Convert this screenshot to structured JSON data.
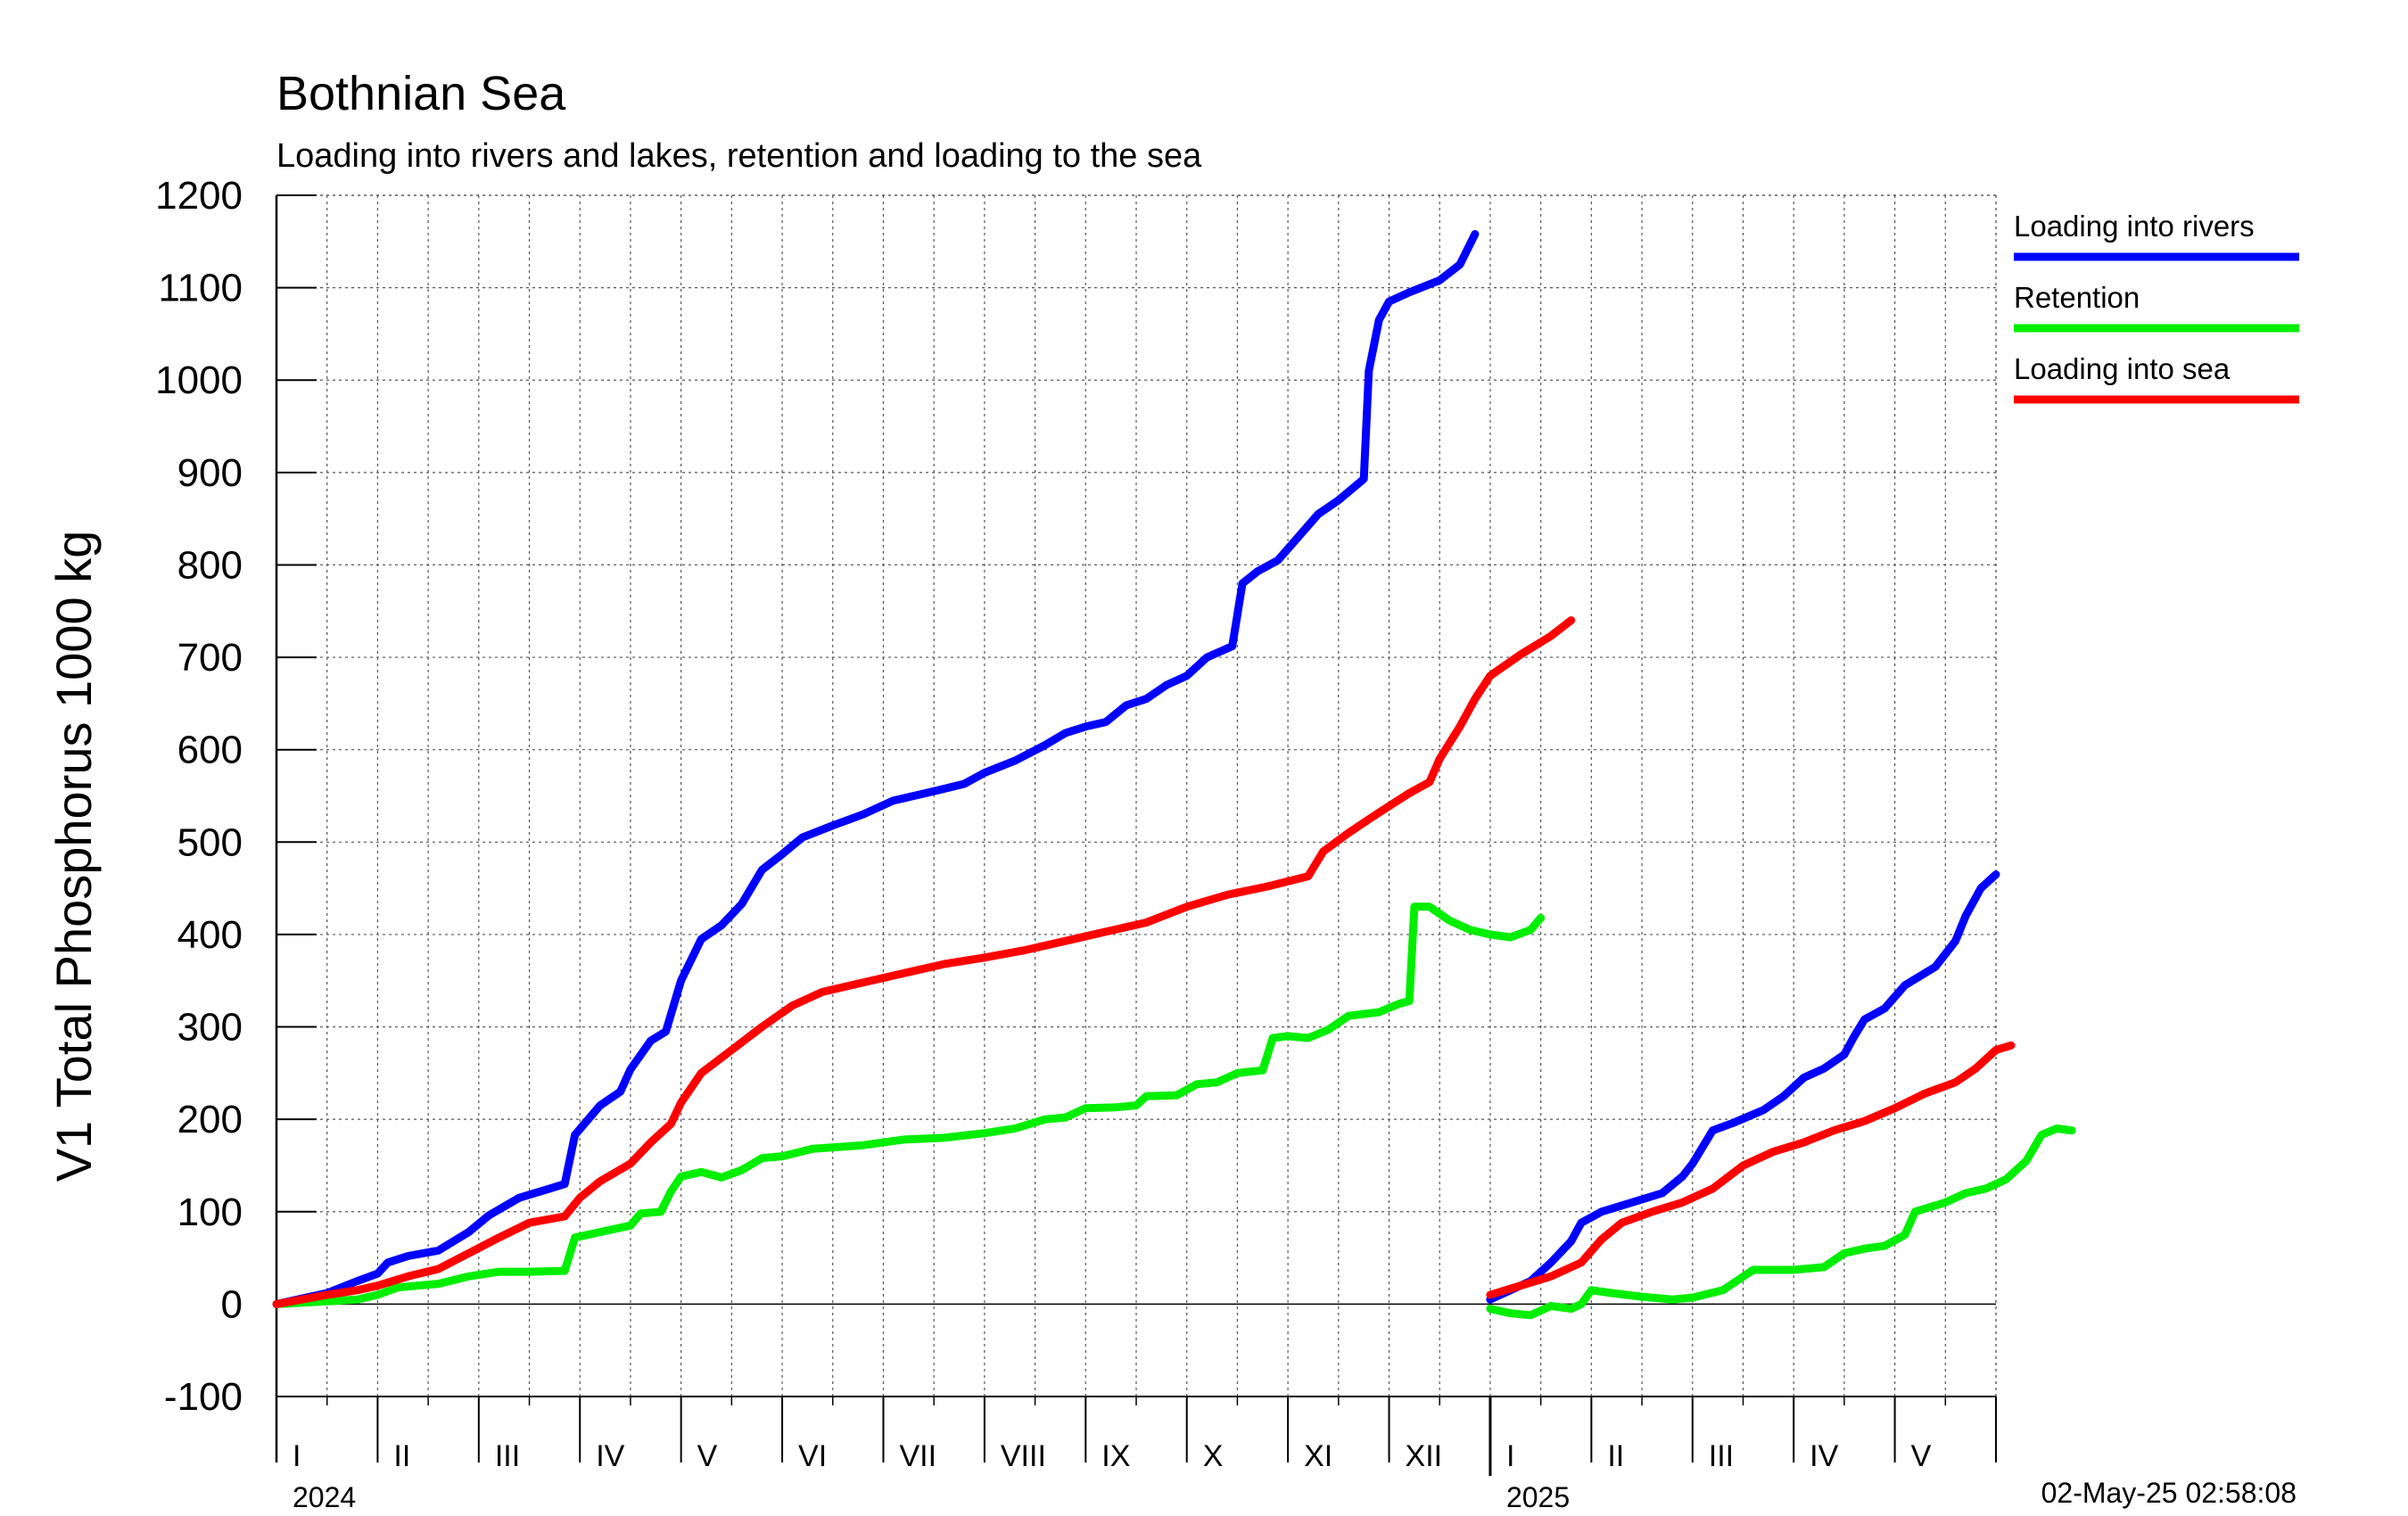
{
  "chart_data": {
    "type": "line",
    "title": "Bothnian Sea",
    "subtitle": "Loading into rivers and lakes, retention and loading to the sea",
    "ylabel": "V1 Total Phosphorus 1000 kg",
    "xlabel": "",
    "ylim": [
      -100,
      1200
    ],
    "yticks": [
      -100,
      0,
      100,
      200,
      300,
      400,
      500,
      600,
      700,
      800,
      900,
      1000,
      1100,
      1200
    ],
    "grid": true,
    "legend_position": "right",
    "timestamp": "02-May-25 02:58:08",
    "x_axis": {
      "unit": "month",
      "range": [
        0,
        17
      ],
      "months": [
        "I",
        "II",
        "III",
        "IV",
        "V",
        "VI",
        "VII",
        "VIII",
        "IX",
        "X",
        "XI",
        "XII",
        "I",
        "II",
        "III",
        "IV",
        "V"
      ],
      "years": [
        {
          "label": "2024",
          "at": 0
        },
        {
          "label": "2025",
          "at": 12
        }
      ],
      "year_boundary": 12
    },
    "series": [
      {
        "name": "Loading into rivers",
        "color": "#0000ff",
        "segments": [
          [
            [
              0,
              0
            ],
            [
              0.5,
              12
            ],
            [
              0.8,
              25
            ],
            [
              1.0,
              33
            ],
            [
              1.1,
              45
            ],
            [
              1.3,
              52
            ],
            [
              1.6,
              58
            ],
            [
              1.9,
              78
            ],
            [
              2.1,
              96
            ],
            [
              2.4,
              115
            ],
            [
              2.7,
              125
            ],
            [
              2.85,
              130
            ],
            [
              2.95,
              183
            ],
            [
              3.2,
              215
            ],
            [
              3.4,
              230
            ],
            [
              3.5,
              254
            ],
            [
              3.7,
              285
            ],
            [
              3.85,
              295
            ],
            [
              4.0,
              350
            ],
            [
              4.2,
              395
            ],
            [
              4.4,
              410
            ],
            [
              4.6,
              433
            ],
            [
              4.8,
              470
            ],
            [
              5.0,
              487
            ],
            [
              5.2,
              505
            ],
            [
              5.5,
              518
            ],
            [
              5.8,
              530
            ],
            [
              6.1,
              545
            ],
            [
              6.5,
              555
            ],
            [
              6.8,
              563
            ],
            [
              7.0,
              575
            ],
            [
              7.3,
              588
            ],
            [
              7.6,
              605
            ],
            [
              7.8,
              618
            ],
            [
              8.0,
              625
            ],
            [
              8.2,
              630
            ],
            [
              8.4,
              648
            ],
            [
              8.6,
              655
            ],
            [
              8.8,
              670
            ],
            [
              9.0,
              680
            ],
            [
              9.2,
              700
            ],
            [
              9.45,
              712
            ],
            [
              9.55,
              780
            ],
            [
              9.7,
              793
            ],
            [
              9.9,
              805
            ],
            [
              10.1,
              830
            ],
            [
              10.3,
              855
            ],
            [
              10.5,
              870
            ],
            [
              10.75,
              893
            ],
            [
              10.8,
              1010
            ],
            [
              10.9,
              1065
            ],
            [
              11.0,
              1085
            ],
            [
              11.2,
              1095
            ],
            [
              11.5,
              1108
            ],
            [
              11.7,
              1125
            ],
            [
              11.85,
              1158
            ]
          ],
          [
            [
              12,
              5
            ],
            [
              12.2,
              15
            ],
            [
              12.4,
              25
            ],
            [
              12.6,
              45
            ],
            [
              12.8,
              68
            ],
            [
              12.9,
              88
            ],
            [
              13.1,
              100
            ],
            [
              13.4,
              110
            ],
            [
              13.7,
              120
            ],
            [
              13.9,
              138
            ],
            [
              14.0,
              152
            ],
            [
              14.2,
              188
            ],
            [
              14.4,
              196
            ],
            [
              14.7,
              210
            ],
            [
              14.9,
              225
            ],
            [
              15.1,
              245
            ],
            [
              15.3,
              255
            ],
            [
              15.5,
              270
            ],
            [
              15.6,
              290
            ],
            [
              15.7,
              308
            ],
            [
              15.9,
              320
            ],
            [
              16.1,
              345
            ],
            [
              16.4,
              365
            ],
            [
              16.6,
              393
            ],
            [
              16.7,
              420
            ],
            [
              16.85,
              450
            ],
            [
              17.0,
              465
            ]
          ]
        ]
      },
      {
        "name": "Retention",
        "color": "#00ee00",
        "segments": [
          [
            [
              0,
              0
            ],
            [
              0.5,
              3
            ],
            [
              0.8,
              5
            ],
            [
              1.0,
              10
            ],
            [
              1.2,
              18
            ],
            [
              1.6,
              22
            ],
            [
              1.9,
              30
            ],
            [
              2.2,
              35
            ],
            [
              2.5,
              35
            ],
            [
              2.85,
              36
            ],
            [
              2.95,
              72
            ],
            [
              3.2,
              78
            ],
            [
              3.5,
              85
            ],
            [
              3.6,
              98
            ],
            [
              3.8,
              100
            ],
            [
              3.9,
              122
            ],
            [
              4.0,
              138
            ],
            [
              4.2,
              143
            ],
            [
              4.4,
              137
            ],
            [
              4.6,
              145
            ],
            [
              4.8,
              158
            ],
            [
              5.0,
              160
            ],
            [
              5.3,
              168
            ],
            [
              5.8,
              172
            ],
            [
              6.2,
              178
            ],
            [
              6.6,
              180
            ],
            [
              7.0,
              185
            ],
            [
              7.3,
              190
            ],
            [
              7.6,
              200
            ],
            [
              7.8,
              202
            ],
            [
              8.0,
              212
            ],
            [
              8.3,
              213
            ],
            [
              8.5,
              215
            ],
            [
              8.6,
              225
            ],
            [
              8.9,
              226
            ],
            [
              9.1,
              238
            ],
            [
              9.3,
              240
            ],
            [
              9.5,
              250
            ],
            [
              9.75,
              253
            ],
            [
              9.85,
              288
            ],
            [
              10.0,
              290
            ],
            [
              10.2,
              288
            ],
            [
              10.4,
              297
            ],
            [
              10.6,
              312
            ],
            [
              10.9,
              316
            ],
            [
              11.1,
              325
            ],
            [
              11.2,
              328
            ],
            [
              11.25,
              430
            ],
            [
              11.4,
              430
            ],
            [
              11.6,
              415
            ],
            [
              11.8,
              405
            ],
            [
              12.0,
              400
            ],
            [
              12.2,
              397
            ],
            [
              12.4,
              405
            ],
            [
              12.5,
              418
            ]
          ],
          [
            [
              12,
              -5
            ],
            [
              12.2,
              -10
            ],
            [
              12.4,
              -12
            ],
            [
              12.6,
              -2
            ],
            [
              12.8,
              -5
            ],
            [
              12.9,
              0
            ],
            [
              13.0,
              15
            ],
            [
              13.2,
              12
            ],
            [
              13.5,
              8
            ],
            [
              13.8,
              5
            ],
            [
              14.0,
              7
            ],
            [
              14.3,
              15
            ],
            [
              14.6,
              37
            ],
            [
              15.0,
              37
            ],
            [
              15.3,
              40
            ],
            [
              15.5,
              55
            ],
            [
              15.7,
              60
            ],
            [
              15.9,
              63
            ],
            [
              16.1,
              75
            ],
            [
              16.2,
              100
            ],
            [
              16.5,
              110
            ],
            [
              16.7,
              120
            ],
            [
              16.9,
              125
            ],
            [
              17.1,
              135
            ],
            [
              17.3,
              155
            ],
            [
              17.45,
              183
            ],
            [
              17.6,
              190
            ],
            [
              17.75,
              188
            ]
          ]
        ]
      },
      {
        "name": "Loading into sea",
        "color": "#ff0000",
        "segments": [
          [
            [
              0,
              0
            ],
            [
              0.5,
              10
            ],
            [
              0.8,
              15
            ],
            [
              1.0,
              20
            ],
            [
              1.3,
              30
            ],
            [
              1.6,
              38
            ],
            [
              1.9,
              55
            ],
            [
              2.2,
              72
            ],
            [
              2.5,
              88
            ],
            [
              2.85,
              95
            ],
            [
              3.0,
              115
            ],
            [
              3.2,
              133
            ],
            [
              3.5,
              152
            ],
            [
              3.7,
              175
            ],
            [
              3.9,
              195
            ],
            [
              4.0,
              218
            ],
            [
              4.2,
              250
            ],
            [
              4.5,
              275
            ],
            [
              4.8,
              300
            ],
            [
              5.1,
              323
            ],
            [
              5.4,
              338
            ],
            [
              5.8,
              348
            ],
            [
              6.2,
              358
            ],
            [
              6.6,
              368
            ],
            [
              7.0,
              375
            ],
            [
              7.4,
              383
            ],
            [
              7.8,
              393
            ],
            [
              8.2,
              403
            ],
            [
              8.6,
              413
            ],
            [
              9.0,
              430
            ],
            [
              9.4,
              443
            ],
            [
              9.8,
              452
            ],
            [
              10.2,
              463
            ],
            [
              10.35,
              490
            ],
            [
              10.6,
              510
            ],
            [
              10.9,
              532
            ],
            [
              11.2,
              553
            ],
            [
              11.4,
              565
            ],
            [
              11.5,
              590
            ],
            [
              11.7,
              625
            ],
            [
              11.85,
              655
            ],
            [
              12.0,
              680
            ],
            [
              12.3,
              703
            ],
            [
              12.6,
              723
            ],
            [
              12.8,
              740
            ]
          ],
          [
            [
              12,
              10
            ],
            [
              12.3,
              20
            ],
            [
              12.6,
              30
            ],
            [
              12.9,
              45
            ],
            [
              13.1,
              70
            ],
            [
              13.3,
              88
            ],
            [
              13.6,
              100
            ],
            [
              13.9,
              110
            ],
            [
              14.2,
              125
            ],
            [
              14.5,
              150
            ],
            [
              14.8,
              165
            ],
            [
              15.1,
              175
            ],
            [
              15.4,
              188
            ],
            [
              15.7,
              198
            ],
            [
              16.0,
              212
            ],
            [
              16.3,
              228
            ],
            [
              16.6,
              240
            ],
            [
              16.8,
              255
            ],
            [
              17.0,
              275
            ],
            [
              17.15,
              280
            ]
          ]
        ]
      }
    ]
  }
}
